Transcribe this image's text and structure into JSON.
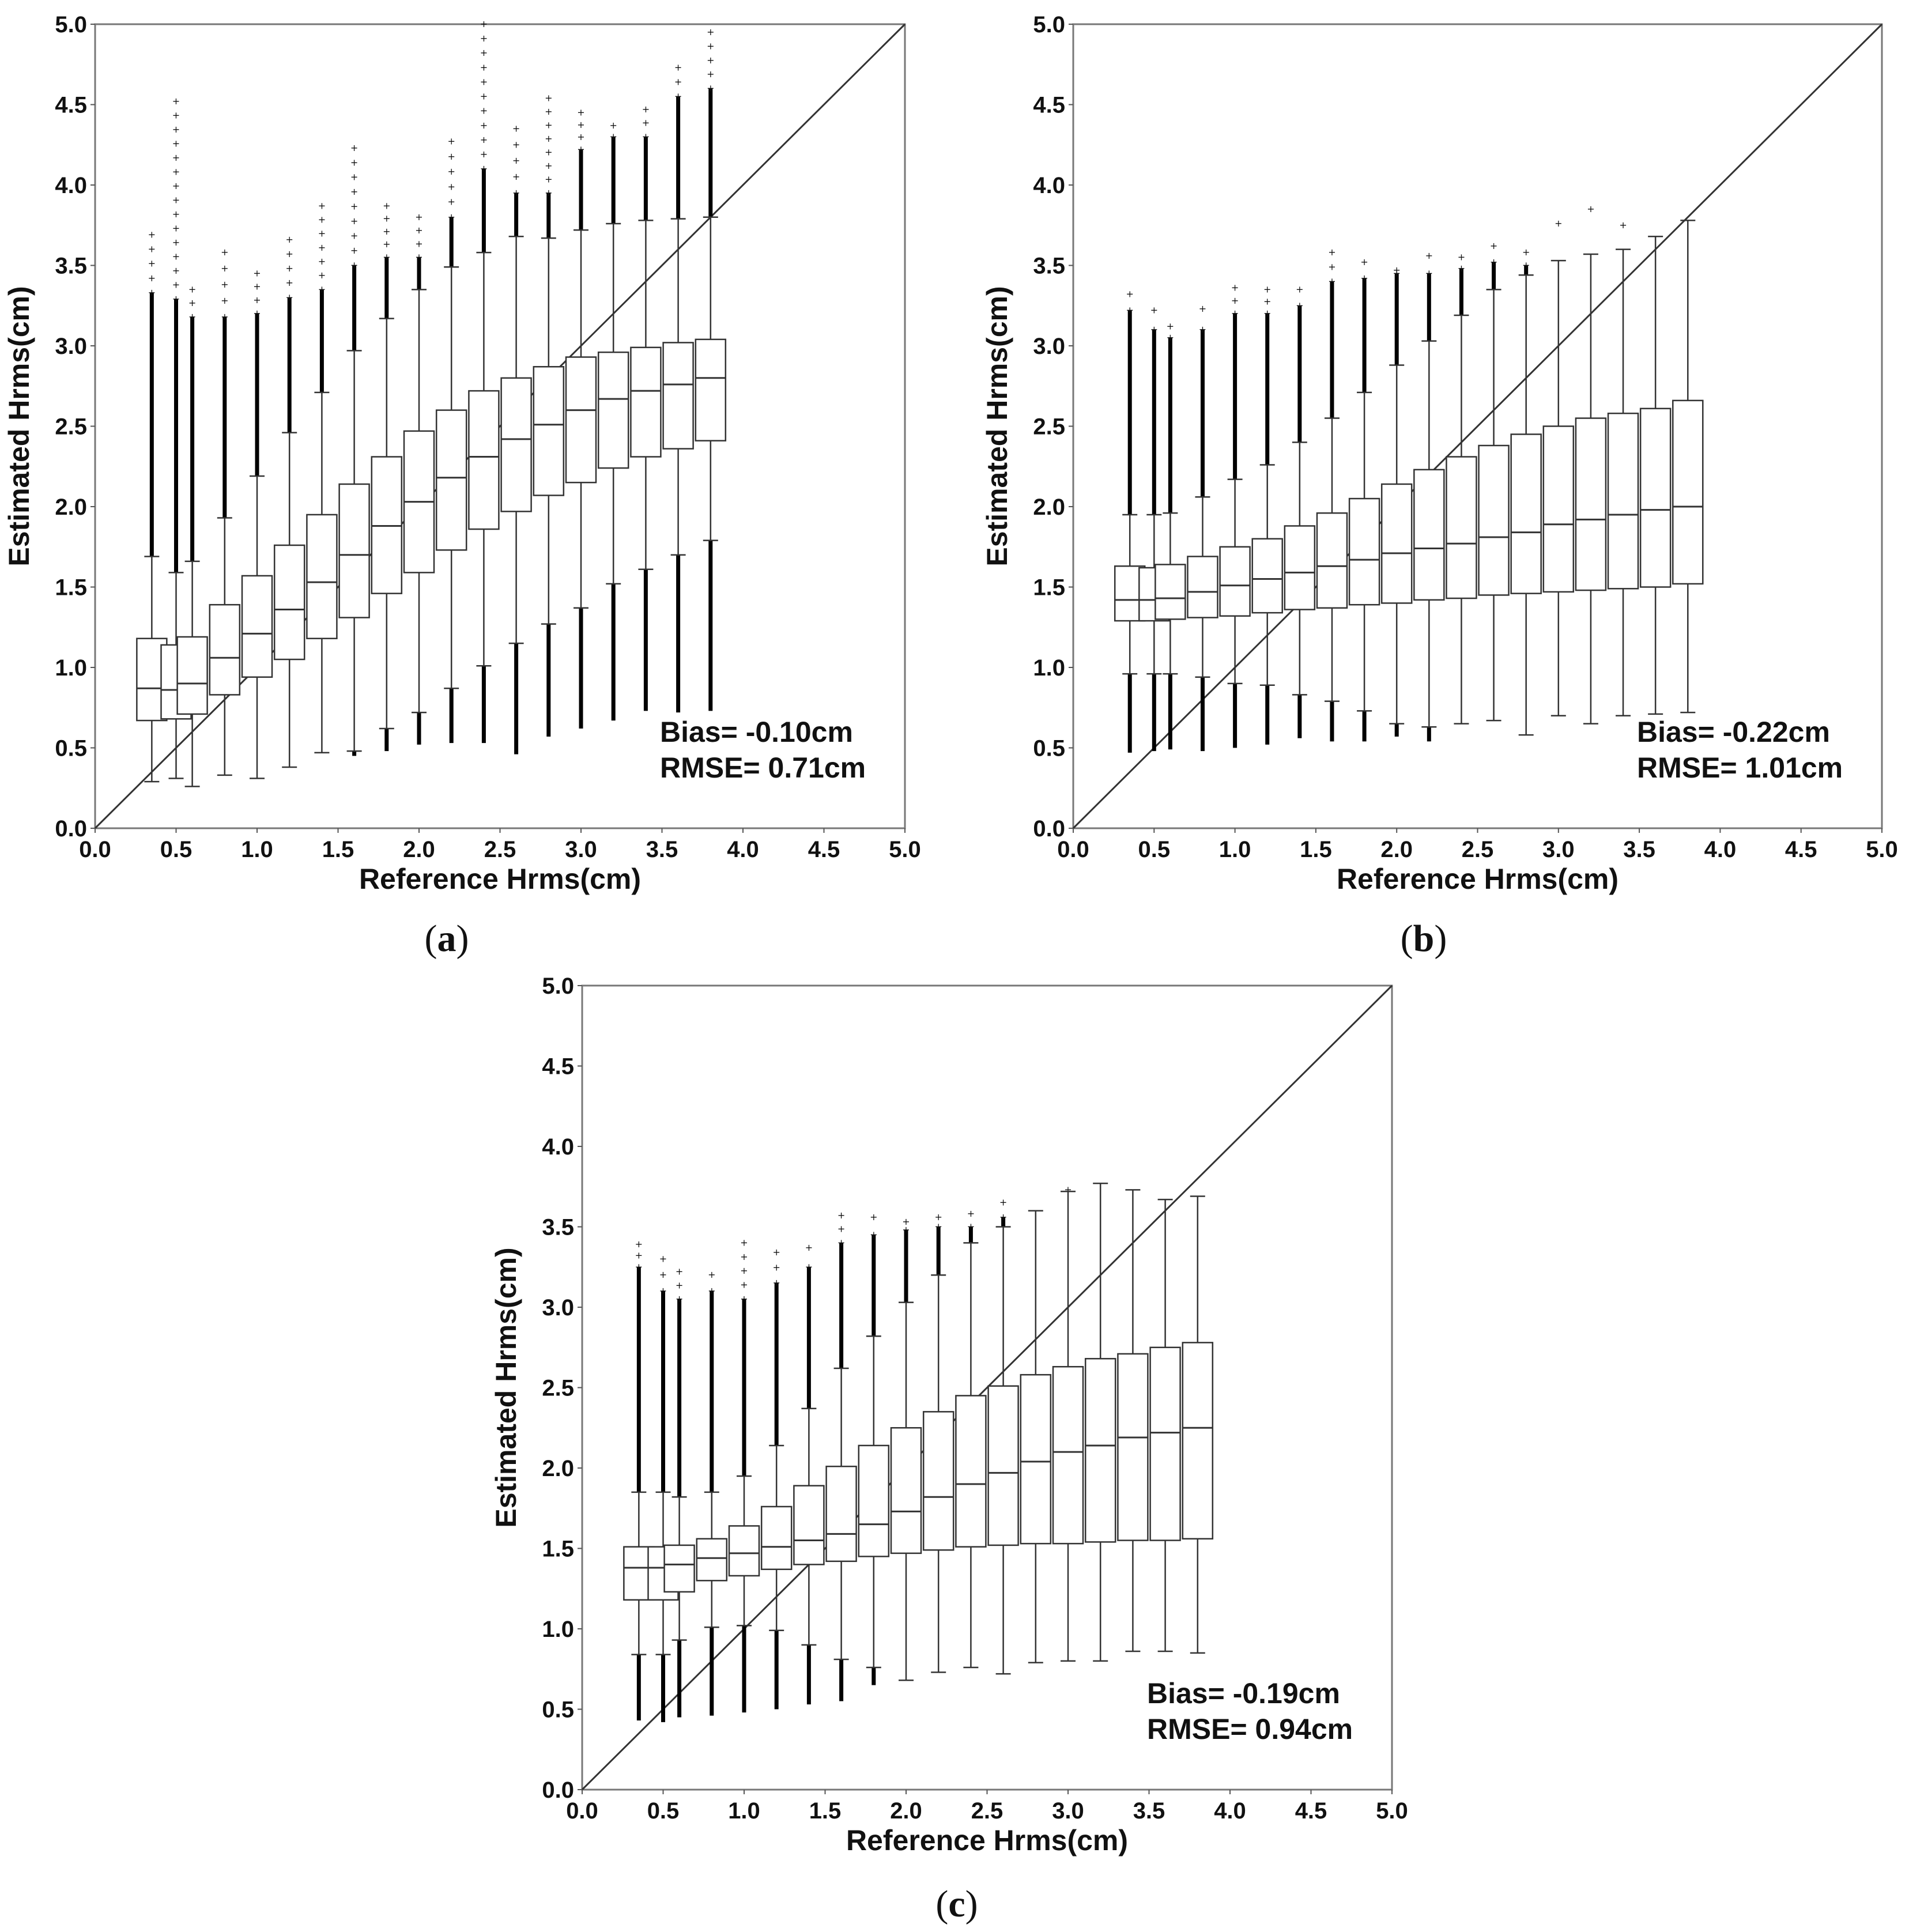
{
  "chart_data": [
    {
      "id": "a",
      "type": "box",
      "panel_label": "a",
      "xlabel": "Reference Hrms(cm)",
      "ylabel": "Estimated Hrms(cm)",
      "xlim": [
        0,
        5
      ],
      "ylim": [
        0,
        5
      ],
      "ticks": [
        "0.0",
        "0.5",
        "1.0",
        "1.5",
        "2.0",
        "2.5",
        "3.0",
        "3.5",
        "4.0",
        "4.5",
        "5.0"
      ],
      "annotations": [
        "Bias= -0.10cm",
        "RMSE= 0.71cm"
      ],
      "reference_line": "y = x",
      "boxes": [
        {
          "x": 0.35,
          "whislo": 0.29,
          "q1": 0.67,
          "med": 0.87,
          "q3": 1.18,
          "whishi": 1.69,
          "flo": null,
          "fhi": 3.33,
          "fmax": 3.69
        },
        {
          "x": 0.5,
          "whislo": 0.31,
          "q1": 0.68,
          "med": 0.86,
          "q3": 1.14,
          "whishi": 1.59,
          "flo": null,
          "fhi": 3.29,
          "fmax": 4.52
        },
        {
          "x": 0.6,
          "whislo": 0.26,
          "q1": 0.71,
          "med": 0.9,
          "q3": 1.19,
          "whishi": 1.66,
          "flo": null,
          "fhi": 3.18,
          "fmax": 3.35
        },
        {
          "x": 0.8,
          "whislo": 0.33,
          "q1": 0.83,
          "med": 1.06,
          "q3": 1.39,
          "whishi": 1.93,
          "flo": null,
          "fhi": 3.18,
          "fmax": 3.58
        },
        {
          "x": 1.0,
          "whislo": 0.31,
          "q1": 0.94,
          "med": 1.21,
          "q3": 1.57,
          "whishi": 2.19,
          "flo": null,
          "fhi": 3.2,
          "fmax": 3.45
        },
        {
          "x": 1.2,
          "whislo": 0.38,
          "q1": 1.05,
          "med": 1.36,
          "q3": 1.76,
          "whishi": 2.46,
          "flo": null,
          "fhi": 3.3,
          "fmax": 3.66
        },
        {
          "x": 1.4,
          "whislo": 0.47,
          "q1": 1.18,
          "med": 1.53,
          "q3": 1.95,
          "whishi": 2.71,
          "flo": null,
          "fhi": 3.35,
          "fmax": 3.87
        },
        {
          "x": 1.6,
          "whislo": 0.48,
          "q1": 1.31,
          "med": 1.7,
          "q3": 2.14,
          "whishi": 2.97,
          "flo": 0.45,
          "fhi": 3.5,
          "fmax": 4.23
        },
        {
          "x": 1.8,
          "whislo": 0.62,
          "q1": 1.46,
          "med": 1.88,
          "q3": 2.31,
          "whishi": 3.17,
          "flo": 0.48,
          "fhi": 3.55,
          "fmax": 3.87
        },
        {
          "x": 2.0,
          "whislo": 0.72,
          "q1": 1.59,
          "med": 2.03,
          "q3": 2.47,
          "whishi": 3.35,
          "flo": 0.52,
          "fhi": 3.55,
          "fmax": 3.8
        },
        {
          "x": 2.2,
          "whislo": 0.87,
          "q1": 1.73,
          "med": 2.18,
          "q3": 2.6,
          "whishi": 3.49,
          "flo": 0.53,
          "fhi": 3.8,
          "fmax": 4.27
        },
        {
          "x": 2.4,
          "whislo": 1.01,
          "q1": 1.86,
          "med": 2.31,
          "q3": 2.72,
          "whishi": 3.58,
          "flo": 0.53,
          "fhi": 4.1,
          "fmax": 5.0
        },
        {
          "x": 2.6,
          "whislo": 1.15,
          "q1": 1.97,
          "med": 2.42,
          "q3": 2.8,
          "whishi": 3.68,
          "flo": 0.46,
          "fhi": 3.95,
          "fmax": 4.35
        },
        {
          "x": 2.8,
          "whislo": 1.27,
          "q1": 2.07,
          "med": 2.51,
          "q3": 2.87,
          "whishi": 3.67,
          "flo": 0.57,
          "fhi": 3.95,
          "fmax": 4.54
        },
        {
          "x": 3.0,
          "whislo": 1.37,
          "q1": 2.15,
          "med": 2.6,
          "q3": 2.93,
          "whishi": 3.72,
          "flo": 0.62,
          "fhi": 4.22,
          "fmax": 4.45
        },
        {
          "x": 3.2,
          "whislo": 1.52,
          "q1": 2.24,
          "med": 2.67,
          "q3": 2.96,
          "whishi": 3.76,
          "flo": 0.67,
          "fhi": 4.3,
          "fmax": 4.37
        },
        {
          "x": 3.4,
          "whislo": 1.61,
          "q1": 2.31,
          "med": 2.72,
          "q3": 2.99,
          "whishi": 3.78,
          "flo": 0.73,
          "fhi": 4.3,
          "fmax": 4.47
        },
        {
          "x": 3.6,
          "whislo": 1.7,
          "q1": 2.36,
          "med": 2.76,
          "q3": 3.02,
          "whishi": 3.79,
          "flo": 0.72,
          "fhi": 4.55,
          "fmax": 4.73
        },
        {
          "x": 3.8,
          "whislo": 1.79,
          "q1": 2.41,
          "med": 2.8,
          "q3": 3.04,
          "whishi": 3.8,
          "flo": 0.73,
          "fhi": 4.6,
          "fmax": 4.95
        }
      ]
    },
    {
      "id": "b",
      "type": "box",
      "panel_label": "b",
      "xlabel": "Reference Hrms(cm)",
      "ylabel": "Estimated Hrms(cm)",
      "xlim": [
        0,
        5
      ],
      "ylim": [
        0,
        5
      ],
      "ticks": [
        "0.0",
        "0.5",
        "1.0",
        "1.5",
        "2.0",
        "2.5",
        "3.0",
        "3.5",
        "4.0",
        "4.5",
        "5.0"
      ],
      "annotations": [
        "Bias= -0.22cm",
        "RMSE= 1.01cm"
      ],
      "reference_line": "y = x",
      "boxes": [
        {
          "x": 0.35,
          "whislo": 0.96,
          "q1": 1.29,
          "med": 1.42,
          "q3": 1.63,
          "whishi": 1.95,
          "flo": 0.47,
          "fhi": 3.22,
          "fmax": 3.32
        },
        {
          "x": 0.5,
          "whislo": 0.96,
          "q1": 1.29,
          "med": 1.42,
          "q3": 1.62,
          "whishi": 1.95,
          "flo": 0.48,
          "fhi": 3.1,
          "fmax": 3.22
        },
        {
          "x": 0.6,
          "whislo": 0.96,
          "q1": 1.3,
          "med": 1.43,
          "q3": 1.64,
          "whishi": 1.96,
          "flo": 0.49,
          "fhi": 3.05,
          "fmax": 3.12
        },
        {
          "x": 0.8,
          "whislo": 0.94,
          "q1": 1.31,
          "med": 1.47,
          "q3": 1.69,
          "whishi": 2.06,
          "flo": 0.48,
          "fhi": 3.1,
          "fmax": 3.23
        },
        {
          "x": 1.0,
          "whislo": 0.9,
          "q1": 1.32,
          "med": 1.51,
          "q3": 1.75,
          "whishi": 2.17,
          "flo": 0.5,
          "fhi": 3.2,
          "fmax": 3.36
        },
        {
          "x": 1.2,
          "whislo": 0.89,
          "q1": 1.34,
          "med": 1.55,
          "q3": 1.8,
          "whishi": 2.26,
          "flo": 0.52,
          "fhi": 3.2,
          "fmax": 3.35
        },
        {
          "x": 1.4,
          "whislo": 0.83,
          "q1": 1.36,
          "med": 1.59,
          "q3": 1.88,
          "whishi": 2.4,
          "flo": 0.56,
          "fhi": 3.25,
          "fmax": 3.35
        },
        {
          "x": 1.6,
          "whislo": 0.79,
          "q1": 1.37,
          "med": 1.63,
          "q3": 1.96,
          "whishi": 2.55,
          "flo": 0.54,
          "fhi": 3.4,
          "fmax": 3.58
        },
        {
          "x": 1.8,
          "whislo": 0.73,
          "q1": 1.39,
          "med": 1.67,
          "q3": 2.05,
          "whishi": 2.71,
          "flo": 0.54,
          "fhi": 3.42,
          "fmax": 3.52
        },
        {
          "x": 2.0,
          "whislo": 0.65,
          "q1": 1.4,
          "med": 1.71,
          "q3": 2.14,
          "whishi": 2.88,
          "flo": 0.57,
          "fhi": 3.45,
          "fmax": 3.47
        },
        {
          "x": 2.2,
          "whislo": 0.63,
          "q1": 1.42,
          "med": 1.74,
          "q3": 2.23,
          "whishi": 3.03,
          "flo": 0.54,
          "fhi": 3.45,
          "fmax": 3.56
        },
        {
          "x": 2.4,
          "whislo": 0.65,
          "q1": 1.43,
          "med": 1.77,
          "q3": 2.31,
          "whishi": 3.19,
          "flo": null,
          "fhi": 3.48,
          "fmax": 3.55
        },
        {
          "x": 2.6,
          "whislo": 0.67,
          "q1": 1.45,
          "med": 1.81,
          "q3": 2.38,
          "whishi": 3.35,
          "flo": null,
          "fhi": 3.52,
          "fmax": 3.62
        },
        {
          "x": 2.8,
          "whislo": 0.58,
          "q1": 1.46,
          "med": 1.84,
          "q3": 2.45,
          "whishi": 3.44,
          "flo": null,
          "fhi": 3.5,
          "fmax": 3.58
        },
        {
          "x": 3.0,
          "whislo": 0.7,
          "q1": 1.47,
          "med": 1.89,
          "q3": 2.5,
          "whishi": 3.53,
          "flo": null,
          "fhi": null,
          "fmax": 3.76
        },
        {
          "x": 3.2,
          "whislo": 0.65,
          "q1": 1.48,
          "med": 1.92,
          "q3": 2.55,
          "whishi": 3.57,
          "flo": null,
          "fhi": null,
          "fmax": 3.85
        },
        {
          "x": 3.4,
          "whislo": 0.7,
          "q1": 1.49,
          "med": 1.95,
          "q3": 2.58,
          "whishi": 3.6,
          "flo": null,
          "fhi": null,
          "fmax": 3.75
        },
        {
          "x": 3.6,
          "whislo": 0.71,
          "q1": 1.5,
          "med": 1.98,
          "q3": 2.61,
          "whishi": 3.68,
          "flo": null,
          "fhi": null,
          "fmax": null
        },
        {
          "x": 3.8,
          "whislo": 0.72,
          "q1": 1.52,
          "med": 2.0,
          "q3": 2.66,
          "whishi": 3.78,
          "flo": null,
          "fhi": null,
          "fmax": null
        }
      ]
    },
    {
      "id": "c",
      "type": "box",
      "panel_label": "c",
      "xlabel": "Reference Hrms(cm)",
      "ylabel": "Estimated Hrms(cm)",
      "xlim": [
        0,
        5
      ],
      "ylim": [
        0,
        5
      ],
      "ticks": [
        "0.0",
        "0.5",
        "1.0",
        "1.5",
        "2.0",
        "2.5",
        "3.0",
        "3.5",
        "4.0",
        "4.5",
        "5.0"
      ],
      "annotations": [
        "Bias= -0.19cm",
        "RMSE= 0.94cm"
      ],
      "reference_line": "y = x",
      "boxes": [
        {
          "x": 0.35,
          "whislo": 0.84,
          "q1": 1.18,
          "med": 1.38,
          "q3": 1.51,
          "whishi": 1.85,
          "flo": 0.43,
          "fhi": 3.25,
          "fmax": 3.39
        },
        {
          "x": 0.5,
          "whislo": 0.84,
          "q1": 1.18,
          "med": 1.38,
          "q3": 1.51,
          "whishi": 1.85,
          "flo": 0.42,
          "fhi": 3.1,
          "fmax": 3.3
        },
        {
          "x": 0.6,
          "whislo": 0.93,
          "q1": 1.23,
          "med": 1.4,
          "q3": 1.52,
          "whishi": 1.82,
          "flo": 0.45,
          "fhi": 3.05,
          "fmax": 3.22
        },
        {
          "x": 0.8,
          "whislo": 1.01,
          "q1": 1.3,
          "med": 1.44,
          "q3": 1.56,
          "whishi": 1.85,
          "flo": 0.46,
          "fhi": 3.1,
          "fmax": 3.2
        },
        {
          "x": 1.0,
          "whislo": 1.02,
          "q1": 1.33,
          "med": 1.47,
          "q3": 1.64,
          "whishi": 1.95,
          "flo": 0.48,
          "fhi": 3.05,
          "fmax": 3.4
        },
        {
          "x": 1.2,
          "whislo": 0.99,
          "q1": 1.37,
          "med": 1.51,
          "q3": 1.76,
          "whishi": 2.14,
          "flo": 0.5,
          "fhi": 3.15,
          "fmax": 3.34
        },
        {
          "x": 1.4,
          "whislo": 0.9,
          "q1": 1.4,
          "med": 1.55,
          "q3": 1.89,
          "whishi": 2.37,
          "flo": 0.53,
          "fhi": 3.25,
          "fmax": 3.37
        },
        {
          "x": 1.6,
          "whislo": 0.81,
          "q1": 1.42,
          "med": 1.59,
          "q3": 2.01,
          "whishi": 2.62,
          "flo": 0.55,
          "fhi": 3.4,
          "fmax": 3.57
        },
        {
          "x": 1.8,
          "whislo": 0.76,
          "q1": 1.45,
          "med": 1.65,
          "q3": 2.14,
          "whishi": 2.82,
          "flo": 0.65,
          "fhi": 3.45,
          "fmax": 3.56
        },
        {
          "x": 2.0,
          "whislo": 0.68,
          "q1": 1.47,
          "med": 1.73,
          "q3": 2.25,
          "whishi": 3.03,
          "flo": null,
          "fhi": 3.48,
          "fmax": 3.53
        },
        {
          "x": 2.2,
          "whislo": 0.73,
          "q1": 1.49,
          "med": 1.82,
          "q3": 2.35,
          "whishi": 3.2,
          "flo": null,
          "fhi": 3.5,
          "fmax": 3.56
        },
        {
          "x": 2.4,
          "whislo": 0.76,
          "q1": 1.51,
          "med": 1.9,
          "q3": 2.45,
          "whishi": 3.4,
          "flo": null,
          "fhi": 3.5,
          "fmax": 3.58
        },
        {
          "x": 2.6,
          "whislo": 0.72,
          "q1": 1.52,
          "med": 1.97,
          "q3": 2.51,
          "whishi": 3.5,
          "flo": null,
          "fhi": 3.56,
          "fmax": 3.65
        },
        {
          "x": 2.8,
          "whislo": 0.79,
          "q1": 1.53,
          "med": 2.04,
          "q3": 2.58,
          "whishi": 3.6,
          "flo": null,
          "fhi": null,
          "fmax": null
        },
        {
          "x": 3.0,
          "whislo": 0.8,
          "q1": 1.53,
          "med": 2.1,
          "q3": 2.63,
          "whishi": 3.72,
          "flo": null,
          "fhi": null,
          "fmax": 3.73
        },
        {
          "x": 3.2,
          "whislo": 0.8,
          "q1": 1.54,
          "med": 2.14,
          "q3": 2.68,
          "whishi": 3.77,
          "flo": null,
          "fhi": null,
          "fmax": null
        },
        {
          "x": 3.4,
          "whislo": 0.86,
          "q1": 1.55,
          "med": 2.19,
          "q3": 2.71,
          "whishi": 3.73,
          "flo": null,
          "fhi": null,
          "fmax": null
        },
        {
          "x": 3.6,
          "whislo": 0.86,
          "q1": 1.55,
          "med": 2.22,
          "q3": 2.75,
          "whishi": 3.67,
          "flo": null,
          "fhi": null,
          "fmax": null
        },
        {
          "x": 3.8,
          "whislo": 0.85,
          "q1": 1.56,
          "med": 2.25,
          "q3": 2.78,
          "whishi": 3.69,
          "flo": null,
          "fhi": null,
          "fmax": null
        }
      ]
    }
  ]
}
